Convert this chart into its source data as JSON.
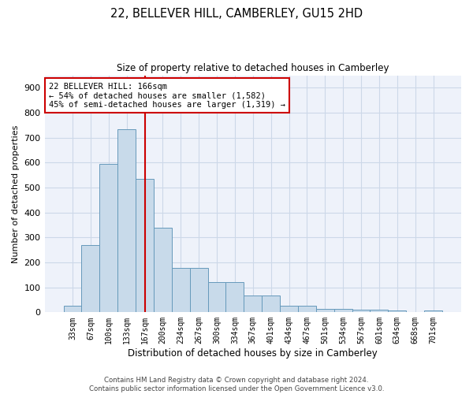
{
  "title": "22, BELLEVER HILL, CAMBERLEY, GU15 2HD",
  "subtitle": "Size of property relative to detached houses in Camberley",
  "xlabel": "Distribution of detached houses by size in Camberley",
  "ylabel": "Number of detached properties",
  "bar_values": [
    25,
    270,
    595,
    735,
    535,
    340,
    178,
    178,
    120,
    120,
    68,
    68,
    25,
    25,
    15,
    15,
    12,
    12,
    8,
    0,
    8
  ],
  "bar_labels": [
    "33sqm",
    "67sqm",
    "100sqm",
    "133sqm",
    "167sqm",
    "200sqm",
    "234sqm",
    "267sqm",
    "300sqm",
    "334sqm",
    "367sqm",
    "401sqm",
    "434sqm",
    "467sqm",
    "501sqm",
    "534sqm",
    "567sqm",
    "601sqm",
    "634sqm",
    "668sqm",
    "701sqm"
  ],
  "bar_color": "#c8daea",
  "bar_edge_color": "#6699bb",
  "grid_color": "#ccd8e8",
  "background_color": "#eef2fa",
  "vline_x": 4.0,
  "vline_color": "#cc0000",
  "annotation_text": "22 BELLEVER HILL: 166sqm\n← 54% of detached houses are smaller (1,582)\n45% of semi-detached houses are larger (1,319) →",
  "annotation_box_color": "#cc0000",
  "ylim": [
    0,
    950
  ],
  "yticks": [
    0,
    100,
    200,
    300,
    400,
    500,
    600,
    700,
    800,
    900
  ],
  "footer": "Contains HM Land Registry data © Crown copyright and database right 2024.\nContains public sector information licensed under the Open Government Licence v3.0.",
  "figsize": [
    6.0,
    5.0
  ],
  "dpi": 100
}
